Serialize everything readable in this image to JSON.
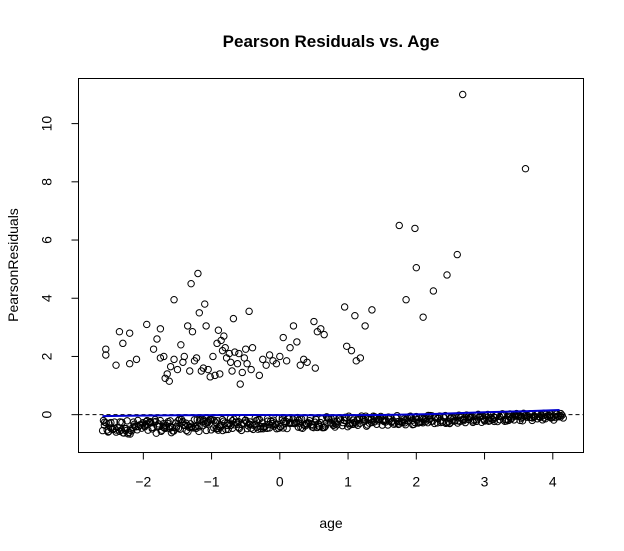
{
  "chart_data": {
    "type": "scatter",
    "title": "Pearson Residuals vs. Age",
    "xlabel": "age",
    "ylabel": "PearsonResiduals",
    "xlim": [
      -2.95,
      4.45
    ],
    "ylim": [
      -1.3,
      11.55
    ],
    "xticks": [
      -2,
      -1,
      0,
      1,
      2,
      3,
      4
    ],
    "yticks": [
      0,
      2,
      4,
      6,
      8,
      10
    ],
    "reference_line": {
      "y": 0,
      "style": "dashed",
      "color": "#000000"
    },
    "smooth_line": {
      "color": "#0000cc",
      "points": [
        [
          -2.6,
          -0.05
        ],
        [
          -1.5,
          -0.02
        ],
        [
          -0.5,
          -0.01
        ],
        [
          0.5,
          -0.02
        ],
        [
          1.5,
          -0.01
        ],
        [
          2.2,
          0.02
        ],
        [
          3.0,
          0.08
        ],
        [
          3.6,
          0.12
        ],
        [
          4.1,
          0.16
        ]
      ]
    },
    "high_points": [
      [
        -2.55,
        2.25
      ],
      [
        -2.55,
        2.05
      ],
      [
        -2.4,
        1.7
      ],
      [
        -2.35,
        2.85
      ],
      [
        -2.3,
        2.45
      ],
      [
        -2.2,
        1.75
      ],
      [
        -2.2,
        2.8
      ],
      [
        -2.1,
        1.9
      ],
      [
        -1.95,
        3.1
      ],
      [
        -1.85,
        2.25
      ],
      [
        -1.8,
        2.6
      ],
      [
        -1.75,
        2.95
      ],
      [
        -1.75,
        1.95
      ],
      [
        -1.7,
        2.0
      ],
      [
        -1.68,
        1.25
      ],
      [
        -1.65,
        1.4
      ],
      [
        -1.62,
        1.15
      ],
      [
        -1.6,
        1.65
      ],
      [
        -1.55,
        1.9
      ],
      [
        -1.55,
        3.95
      ],
      [
        -1.5,
        1.55
      ],
      [
        -1.45,
        2.4
      ],
      [
        -1.42,
        1.8
      ],
      [
        -1.4,
        2.0
      ],
      [
        -1.35,
        3.05
      ],
      [
        -1.32,
        1.5
      ],
      [
        -1.3,
        4.5
      ],
      [
        -1.28,
        2.85
      ],
      [
        -1.25,
        1.85
      ],
      [
        -1.22,
        1.95
      ],
      [
        -1.2,
        4.85
      ],
      [
        -1.18,
        3.5
      ],
      [
        -1.15,
        1.5
      ],
      [
        -1.12,
        1.6
      ],
      [
        -1.1,
        3.8
      ],
      [
        -1.08,
        3.05
      ],
      [
        -1.05,
        1.55
      ],
      [
        -1.02,
        1.3
      ],
      [
        -0.98,
        2.0
      ],
      [
        -0.95,
        1.35
      ],
      [
        -0.92,
        2.45
      ],
      [
        -0.9,
        2.9
      ],
      [
        -0.88,
        1.4
      ],
      [
        -0.86,
        2.55
      ],
      [
        -0.84,
        2.2
      ],
      [
        -0.82,
        2.7
      ],
      [
        -0.8,
        2.3
      ],
      [
        -0.78,
        1.95
      ],
      [
        -0.74,
        2.1
      ],
      [
        -0.72,
        1.8
      ],
      [
        -0.7,
        1.5
      ],
      [
        -0.68,
        3.3
      ],
      [
        -0.66,
        2.15
      ],
      [
        -0.62,
        1.75
      ],
      [
        -0.6,
        2.1
      ],
      [
        -0.58,
        1.05
      ],
      [
        -0.55,
        1.45
      ],
      [
        -0.52,
        1.95
      ],
      [
        -0.5,
        2.25
      ],
      [
        -0.48,
        1.75
      ],
      [
        -0.45,
        3.55
      ],
      [
        -0.42,
        1.55
      ],
      [
        -0.4,
        2.3
      ],
      [
        -0.3,
        1.35
      ],
      [
        -0.25,
        1.9
      ],
      [
        -0.2,
        1.7
      ],
      [
        -0.15,
        2.05
      ],
      [
        -0.1,
        1.85
      ],
      [
        -0.05,
        1.75
      ],
      [
        0.0,
        2.0
      ],
      [
        0.05,
        2.65
      ],
      [
        0.1,
        1.85
      ],
      [
        0.15,
        2.3
      ],
      [
        0.2,
        3.05
      ],
      [
        0.25,
        2.5
      ],
      [
        0.3,
        1.7
      ],
      [
        0.35,
        1.9
      ],
      [
        0.4,
        1.8
      ],
      [
        0.5,
        3.2
      ],
      [
        0.52,
        1.6
      ],
      [
        0.55,
        2.85
      ],
      [
        0.6,
        2.95
      ],
      [
        0.65,
        2.75
      ],
      [
        0.95,
        3.7
      ],
      [
        0.98,
        2.35
      ],
      [
        1.05,
        2.2
      ],
      [
        1.1,
        3.4
      ],
      [
        1.12,
        1.85
      ],
      [
        1.18,
        1.95
      ],
      [
        1.25,
        3.05
      ],
      [
        1.35,
        3.6
      ],
      [
        1.75,
        6.5
      ],
      [
        1.85,
        3.95
      ],
      [
        1.98,
        6.4
      ],
      [
        2.0,
        5.05
      ],
      [
        2.1,
        3.35
      ],
      [
        2.25,
        4.25
      ],
      [
        2.45,
        4.8
      ],
      [
        2.6,
        5.5
      ],
      [
        2.68,
        11.0
      ],
      [
        3.6,
        8.45
      ]
    ]
  }
}
